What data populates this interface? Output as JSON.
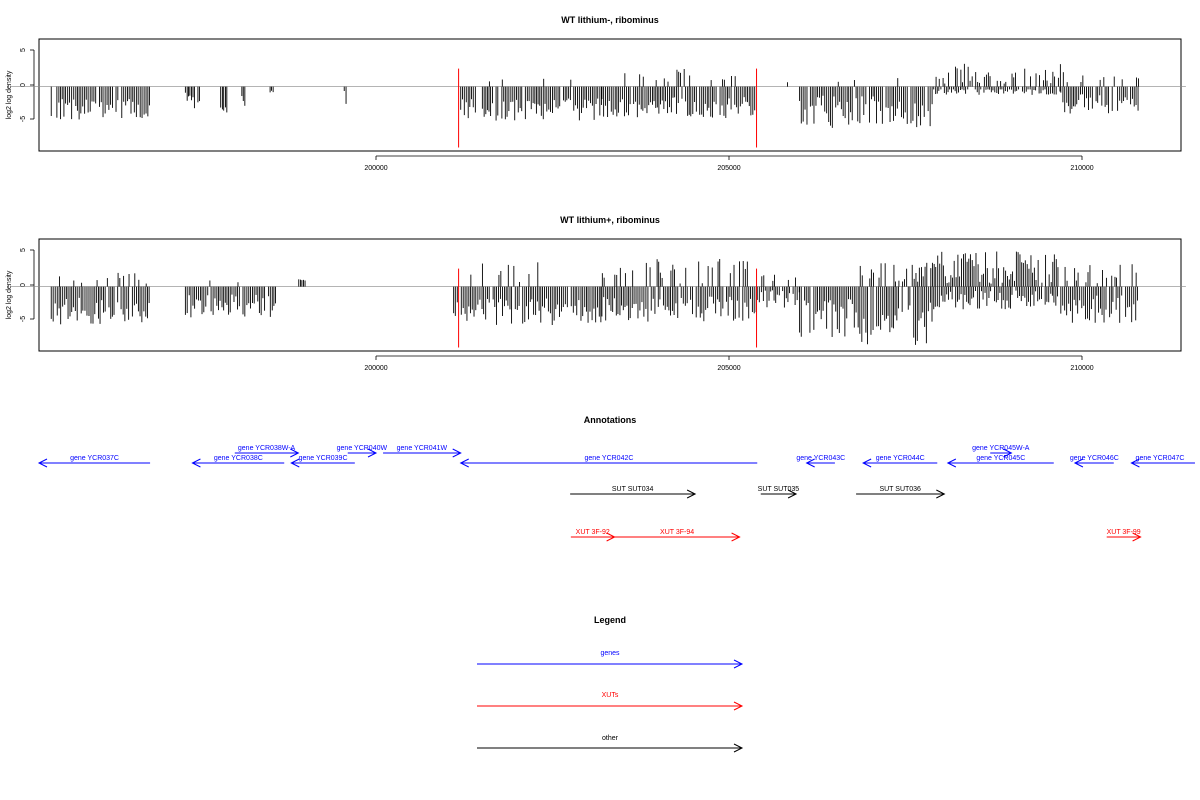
{
  "colors": {
    "gene": "#0000ff",
    "xut": "#ff0000",
    "other": "#000000",
    "highlight": "#ff0000",
    "baseline": "#888888"
  },
  "panels": [
    {
      "title": "WT lithium-, ribominus",
      "ylabel": "log2 log density",
      "yticks": [
        "5",
        "0",
        "-5"
      ],
      "xticks": [
        "200000",
        "205000",
        "210000"
      ]
    },
    {
      "title": "WT lithium+, ribominus",
      "ylabel": "log2 log density",
      "yticks": [
        "5",
        "0",
        "-5"
      ],
      "xticks": [
        "200000",
        "205000",
        "210000"
      ]
    }
  ],
  "annotations": {
    "title": "Annotations",
    "features": [
      {
        "label": "gene YCR037C",
        "type": "gene",
        "start": 194800,
        "end": 196800,
        "strand": "-"
      },
      {
        "label": "gene YCR038W-A",
        "type": "gene",
        "start": 198000,
        "end": 198900,
        "strand": "+"
      },
      {
        "label": "gene YCR038C",
        "type": "gene",
        "start": 197400,
        "end": 198700,
        "strand": "-"
      },
      {
        "label": "gene YCR039C",
        "type": "gene",
        "start": 198800,
        "end": 199700,
        "strand": "-"
      },
      {
        "label": "gene YCR040W",
        "type": "gene",
        "start": 199600,
        "end": 200000,
        "strand": "+"
      },
      {
        "label": "gene YCR041W",
        "type": "gene",
        "start": 200100,
        "end": 201200,
        "strand": "+"
      },
      {
        "label": "gene YCR042C",
        "type": "gene",
        "start": 201200,
        "end": 205400,
        "strand": "-"
      },
      {
        "label": "gene YCR043C",
        "type": "gene",
        "start": 206100,
        "end": 206500,
        "strand": "-"
      },
      {
        "label": "gene YCR044C",
        "type": "gene",
        "start": 206900,
        "end": 207950,
        "strand": "-"
      },
      {
        "label": "gene YCR045W-A",
        "type": "gene",
        "start": 208700,
        "end": 209000,
        "strand": "+"
      },
      {
        "label": "gene YCR045C",
        "type": "gene",
        "start": 208100,
        "end": 209600,
        "strand": "-"
      },
      {
        "label": "gene YCR046C",
        "type": "gene",
        "start": 209900,
        "end": 210450,
        "strand": "-"
      },
      {
        "label": "gene YCR047C",
        "type": "gene",
        "start": 210700,
        "end": 211600,
        "strand": "-"
      },
      {
        "label": "SUT SUT034",
        "type": "other",
        "start": 202750,
        "end": 204520,
        "strand": "+"
      },
      {
        "label": "SUT SUT035",
        "type": "other",
        "start": 205450,
        "end": 205950,
        "strand": "+"
      },
      {
        "label": "SUT SUT036",
        "type": "other",
        "start": 206800,
        "end": 208050,
        "strand": "+"
      },
      {
        "label": "XUT 3F-92",
        "type": "xut",
        "start": 202760,
        "end": 203380,
        "strand": "+"
      },
      {
        "label": "XUT 3F-94",
        "type": "xut",
        "start": 203380,
        "end": 205150,
        "strand": "+"
      },
      {
        "label": "XUT 3F-99",
        "type": "xut",
        "start": 210350,
        "end": 210830,
        "strand": "+"
      }
    ]
  },
  "legend": {
    "title": "Legend",
    "items": [
      {
        "label": "genes",
        "type": "gene"
      },
      {
        "label": "XUTs",
        "type": "xut"
      },
      {
        "label": "other",
        "type": "other"
      }
    ]
  },
  "chart_data": [
    {
      "type": "bar",
      "title": "WT lithium-, ribominus",
      "xlabel": "",
      "ylabel": "log2 log density",
      "xlim": [
        194800,
        211500
      ],
      "ylim": [
        -9.2,
        6.8
      ],
      "xticks": [
        200000,
        205000,
        210000
      ],
      "yticks": [
        5,
        0,
        -5
      ],
      "grid": false,
      "baseline": 0,
      "highlight_lines": [
        {
          "x": 201170,
          "y": -8.7
        },
        {
          "x": 205390,
          "y": -8.7
        }
      ],
      "bins": [
        [
          195400,
          196800,
          -3.2,
          -1.5,
          0,
          0
        ],
        [
          197300,
          197500,
          -1.9,
          -1.2,
          0,
          0
        ],
        [
          197800,
          197900,
          -2.6,
          -1.4,
          0,
          0
        ],
        [
          198100,
          198150,
          -1.8,
          -1.2,
          0,
          0
        ],
        [
          198500,
          198550,
          -1.3,
          -0.8,
          0,
          0
        ],
        [
          199550,
          199600,
          -1.7,
          -1.2,
          0,
          0
        ],
        [
          201200,
          203200,
          -3.3,
          -1.6,
          0.06,
          1.8
        ],
        [
          203200,
          205400,
          -3.0,
          -1.5,
          0.22,
          2.3
        ],
        [
          205400,
          206000,
          0,
          0,
          0.05,
          0.5
        ],
        [
          206000,
          207900,
          -3.6,
          -2.3,
          0.04,
          1.4
        ],
        [
          207900,
          209700,
          -0.6,
          -0.6,
          0.62,
          2.9
        ],
        [
          209700,
          210800,
          -2.4,
          -1.6,
          0.2,
          1.7
        ]
      ]
    },
    {
      "type": "bar",
      "title": "WT lithium+, ribominus",
      "xlabel": "",
      "ylabel": "log2 log density",
      "xlim": [
        194800,
        211500
      ],
      "ylim": [
        -9.2,
        6.8
      ],
      "xticks": [
        200000,
        205000,
        210000
      ],
      "yticks": [
        5,
        0,
        -5
      ],
      "grid": false,
      "baseline": 0,
      "highlight_lines": [
        {
          "x": 201170,
          "y": -8.7
        },
        {
          "x": 205390,
          "y": -8.7
        }
      ],
      "bins": [
        [
          195400,
          196800,
          -3.5,
          -1.9,
          0.2,
          1.6
        ],
        [
          197300,
          198600,
          -2.8,
          -1.7,
          0.04,
          2.0
        ],
        [
          198900,
          199000,
          0,
          0,
          1.0,
          0.8
        ],
        [
          201100,
          203200,
          -3.6,
          -1.9,
          0.12,
          3.2
        ],
        [
          203200,
          205400,
          -3.2,
          -1.8,
          0.3,
          3.6
        ],
        [
          205400,
          206000,
          -1.8,
          -1.3,
          0.25,
          1.4
        ],
        [
          206000,
          206800,
          -4.5,
          -2.8,
          0.06,
          1.6
        ],
        [
          206800,
          207900,
          -5.2,
          -3.3,
          0.5,
          3.0
        ],
        [
          207900,
          209700,
          -1.9,
          -1.4,
          0.92,
          4.9
        ],
        [
          209700,
          210800,
          -3.2,
          -2.0,
          0.5,
          2.8
        ]
      ]
    }
  ]
}
